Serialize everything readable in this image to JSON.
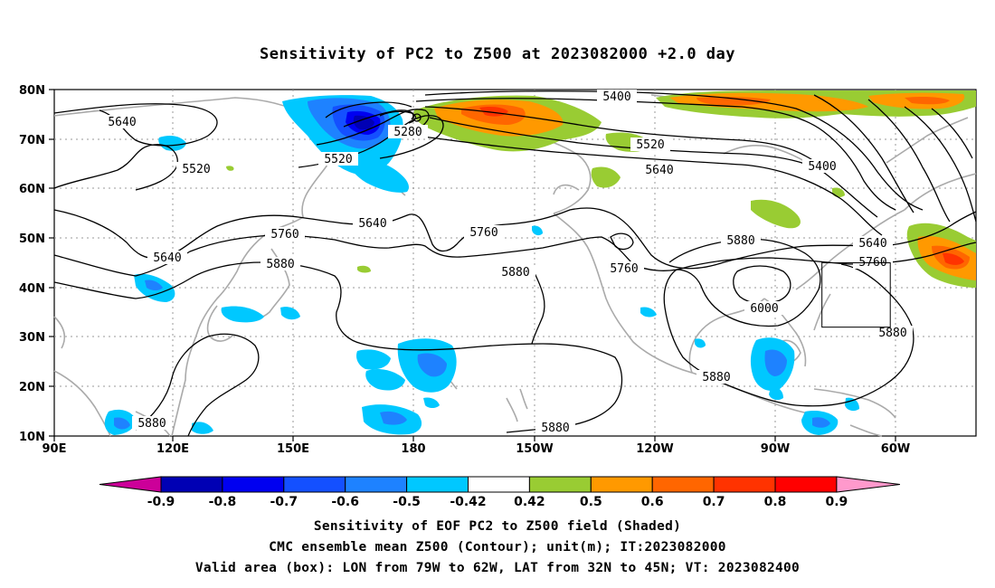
{
  "title": "Sensitivity of PC2 to Z500 at 2023082000 +2.0 day",
  "lat_ticks": [
    "80N",
    "70N",
    "60N",
    "50N",
    "40N",
    "30N",
    "20N",
    "10N"
  ],
  "lon_ticks": [
    "90E",
    "120E",
    "150E",
    "180",
    "150W",
    "120W",
    "90W",
    "60W"
  ],
  "contour_labels": [
    "5640",
    "5520",
    "5280",
    "5400",
    "5520",
    "5640",
    "5400",
    "5520",
    "5640",
    "5760",
    "5640",
    "5760",
    "5760",
    "5640",
    "5880",
    "5880",
    "5760",
    "5880",
    "6000",
    "5880",
    "5880",
    "5880",
    "5880"
  ],
  "colorbar": {
    "labels": [
      "-0.9",
      "-0.8",
      "-0.7",
      "-0.6",
      "-0.5",
      "-0.42",
      "0.42",
      "0.5",
      "0.6",
      "0.7",
      "0.8",
      "0.9"
    ],
    "colors": [
      "#0000b4",
      "#0000f0",
      "#1450ff",
      "#1e82ff",
      "#00c8ff",
      "#ffffff",
      "#99cc33",
      "#ff9900",
      "#ff6600",
      "#ff3300",
      "#ff0000"
    ],
    "left_arrow_color": "#cc0099",
    "right_arrow_color": "#ff99cc"
  },
  "valid_box": {
    "lon_west": -79,
    "lon_east": -62,
    "lat_south": 32,
    "lat_north": 45
  },
  "footer": {
    "line1": "Sensitivity of EOF PC2 to Z500 field (Shaded)",
    "line2": "CMC ensemble mean Z500 (Contour); unit(m); IT:2023082000",
    "line3": "Valid area (box): LON from 79W to 62W, LAT from 32N to 45N; VT: 2023082400"
  }
}
